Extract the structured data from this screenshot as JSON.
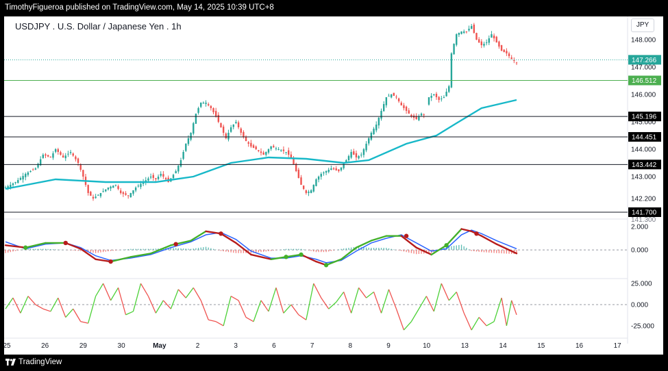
{
  "header": {
    "byline": "TimothyFigueroa published on TradingView.com, May 14, 2025 10:39 UTC+8"
  },
  "footer": {
    "logo_text": "TradingView"
  },
  "chart_title": "USDJPY . U.S. Dollar / Japanese Yen . 1h",
  "currency_badge": "JPY",
  "colors": {
    "up_candle": "#26a69a",
    "down_candle": "#ef5350",
    "ma_line": "#17b8c8",
    "osc_fast_up": "#43b02a",
    "osc_fast_down": "#b71c1c",
    "osc_slow": "#2962ff",
    "rsi_up": "#4cd137",
    "rsi_down": "#ef5350",
    "price_tag_bg": "#000000",
    "current_price_bg": "#26a69a",
    "green_level_bg": "#4caf50"
  },
  "chart_data": {
    "type": "candlestick",
    "x_labels": [
      "25",
      "26",
      "29",
      "30",
      "May",
      "2",
      "3",
      "6",
      "7",
      "8",
      "9",
      "10",
      "13",
      "14",
      "15",
      "16",
      "17"
    ],
    "panels": [
      {
        "name": "price",
        "y_ticks": [
          142.2,
          143.0,
          144.0,
          145.0,
          146.0,
          147.0,
          148.0
        ],
        "y_tick_labels": [
          "142.200",
          "143.000",
          "144.000",
          "145.000",
          "146.000",
          "147.000",
          "148.000"
        ],
        "ylim": [
          141.6,
          148.85
        ],
        "partial_bottom_label": "141.300",
        "levels": [
          {
            "value": 147.266,
            "label": "147.266",
            "style": "dotted",
            "kind": "current"
          },
          {
            "value": 146.512,
            "label": "146.512",
            "style": "solid-green",
            "kind": "green"
          },
          {
            "value": 145.196,
            "label": "145.196",
            "style": "solid-black",
            "kind": "black"
          },
          {
            "value": 144.451,
            "label": "144.451",
            "style": "solid-black",
            "kind": "black"
          },
          {
            "value": 143.442,
            "label": "143.442",
            "style": "solid-black",
            "kind": "black"
          },
          {
            "value": 141.7,
            "label": "141.700",
            "style": "solid-black",
            "kind": "black"
          }
        ],
        "close_path": [
          [
            0,
            142.6
          ],
          [
            4,
            142.8
          ],
          [
            8,
            143.1
          ],
          [
            12,
            143.3
          ],
          [
            15,
            143.8
          ],
          [
            18,
            143.7
          ],
          [
            20,
            144.0
          ],
          [
            23,
            143.7
          ],
          [
            26,
            143.9
          ],
          [
            29,
            143.5
          ],
          [
            31,
            143.0
          ],
          [
            33,
            142.4
          ],
          [
            35,
            142.2
          ],
          [
            38,
            142.4
          ],
          [
            41,
            142.6
          ],
          [
            44,
            142.7
          ],
          [
            46,
            142.4
          ],
          [
            49,
            142.3
          ],
          [
            52,
            142.6
          ],
          [
            55,
            142.8
          ],
          [
            58,
            143.0
          ],
          [
            60,
            142.9
          ],
          [
            62,
            143.1
          ],
          [
            65,
            142.8
          ],
          [
            68,
            143.2
          ],
          [
            70,
            143.6
          ],
          [
            72,
            144.2
          ],
          [
            74,
            144.6
          ],
          [
            76,
            145.3
          ],
          [
            78,
            145.7
          ],
          [
            80,
            145.7
          ],
          [
            82,
            145.5
          ],
          [
            84,
            145.2
          ],
          [
            86,
            144.8
          ],
          [
            88,
            144.4
          ],
          [
            90,
            144.8
          ],
          [
            92,
            145.0
          ],
          [
            94,
            144.6
          ],
          [
            96,
            144.3
          ],
          [
            98,
            144.1
          ],
          [
            100,
            144.0
          ],
          [
            103,
            143.8
          ],
          [
            106,
            144.1
          ],
          [
            109,
            144.0
          ],
          [
            112,
            143.9
          ],
          [
            114,
            143.7
          ],
          [
            116,
            143.2
          ],
          [
            118,
            142.7
          ],
          [
            120,
            142.4
          ],
          [
            122,
            142.5
          ],
          [
            124,
            142.9
          ],
          [
            126,
            143.1
          ],
          [
            128,
            143.2
          ],
          [
            130,
            143.3
          ],
          [
            133,
            143.2
          ],
          [
            136,
            143.6
          ],
          [
            138,
            143.9
          ],
          [
            140,
            143.7
          ],
          [
            142,
            143.8
          ],
          [
            144,
            144.2
          ],
          [
            146,
            144.6
          ],
          [
            148,
            144.9
          ],
          [
            150,
            145.4
          ],
          [
            152,
            145.9
          ],
          [
            154,
            146.0
          ],
          [
            156,
            145.9
          ],
          [
            158,
            145.6
          ],
          [
            160,
            145.4
          ],
          [
            162,
            145.2
          ],
          [
            164,
            145.1
          ],
          [
            166,
            145.3
          ],
          [
            167,
            145.25
          ],
          [
            169,
            145.9
          ],
          [
            171,
            146.0
          ],
          [
            173,
            145.8
          ],
          [
            175,
            145.9
          ],
          [
            177,
            146.3
          ],
          [
            178,
            147.5
          ],
          [
            180,
            148.2
          ],
          [
            182,
            148.3
          ],
          [
            184,
            148.3
          ],
          [
            186,
            148.5
          ],
          [
            188,
            148.0
          ],
          [
            190,
            147.8
          ],
          [
            192,
            147.9
          ],
          [
            194,
            148.2
          ],
          [
            196,
            147.9
          ],
          [
            198,
            147.6
          ],
          [
            200,
            147.5
          ],
          [
            202,
            147.3
          ],
          [
            204,
            147.15
          ]
        ],
        "moving_average": [
          [
            0,
            142.55
          ],
          [
            20,
            142.9
          ],
          [
            40,
            142.8
          ],
          [
            60,
            142.8
          ],
          [
            75,
            143.0
          ],
          [
            90,
            143.5
          ],
          [
            105,
            143.7
          ],
          [
            120,
            143.65
          ],
          [
            135,
            143.5
          ],
          [
            145,
            143.6
          ],
          [
            160,
            144.2
          ],
          [
            172,
            144.5
          ],
          [
            180,
            144.95
          ],
          [
            190,
            145.5
          ],
          [
            204,
            145.8
          ]
        ],
        "gap_after_index": 167
      },
      {
        "name": "oscillator",
        "y_ticks": [
          2.0,
          0.0
        ],
        "y_tick_labels": [
          "2.000",
          "0.000"
        ],
        "ylim": [
          -2.4,
          2.3
        ],
        "fast": [
          [
            0,
            0.4
          ],
          [
            8,
            0.2
          ],
          [
            16,
            0.6
          ],
          [
            24,
            0.6
          ],
          [
            30,
            0.1
          ],
          [
            36,
            -0.8
          ],
          [
            42,
            -1.0
          ],
          [
            50,
            -0.6
          ],
          [
            58,
            -0.3
          ],
          [
            66,
            0.4
          ],
          [
            74,
            0.8
          ],
          [
            80,
            1.6
          ],
          [
            86,
            1.4
          ],
          [
            92,
            0.6
          ],
          [
            98,
            -0.4
          ],
          [
            106,
            -0.8
          ],
          [
            112,
            -0.6
          ],
          [
            118,
            -0.4
          ],
          [
            124,
            -1.0
          ],
          [
            128,
            -1.3
          ],
          [
            134,
            -0.8
          ],
          [
            140,
            0.2
          ],
          [
            146,
            0.8
          ],
          [
            152,
            1.2
          ],
          [
            158,
            1.2
          ],
          [
            164,
            0.2
          ],
          [
            170,
            -0.4
          ],
          [
            176,
            0.4
          ],
          [
            182,
            1.8
          ],
          [
            186,
            1.6
          ],
          [
            190,
            1.2
          ],
          [
            196,
            0.5
          ],
          [
            204,
            -0.3
          ]
        ],
        "slow": [
          [
            0,
            0.7
          ],
          [
            8,
            0.1
          ],
          [
            16,
            0.5
          ],
          [
            24,
            0.6
          ],
          [
            30,
            0.2
          ],
          [
            36,
            -0.5
          ],
          [
            42,
            -0.9
          ],
          [
            50,
            -0.7
          ],
          [
            58,
            -0.4
          ],
          [
            66,
            0.2
          ],
          [
            74,
            0.7
          ],
          [
            80,
            1.3
          ],
          [
            86,
            1.5
          ],
          [
            92,
            0.9
          ],
          [
            98,
            -0.1
          ],
          [
            106,
            -0.7
          ],
          [
            112,
            -0.7
          ],
          [
            118,
            -0.5
          ],
          [
            124,
            -0.8
          ],
          [
            128,
            -1.1
          ],
          [
            134,
            -0.9
          ],
          [
            140,
            -0.1
          ],
          [
            146,
            0.6
          ],
          [
            152,
            1.0
          ],
          [
            158,
            1.3
          ],
          [
            164,
            0.6
          ],
          [
            170,
            -0.1
          ],
          [
            176,
            0.1
          ],
          [
            182,
            1.3
          ],
          [
            186,
            1.7
          ],
          [
            190,
            1.4
          ],
          [
            196,
            0.8
          ],
          [
            204,
            0.1
          ]
        ],
        "dots": [
          {
            "x": 8,
            "v": 0.2,
            "dir": "up"
          },
          {
            "x": 24,
            "v": 0.6,
            "dir": "down"
          },
          {
            "x": 42,
            "v": -1.0,
            "dir": "down"
          },
          {
            "x": 68,
            "v": 0.5,
            "dir": "down"
          },
          {
            "x": 86,
            "v": 1.4,
            "dir": "down"
          },
          {
            "x": 112,
            "v": -0.6,
            "dir": "up"
          },
          {
            "x": 118,
            "v": -0.4,
            "dir": "up"
          },
          {
            "x": 128,
            "v": -1.3,
            "dir": "up"
          },
          {
            "x": 160,
            "v": 1.2,
            "dir": "down"
          },
          {
            "x": 176,
            "v": 0.4,
            "dir": "up"
          },
          {
            "x": 188,
            "v": 1.4,
            "dir": "down"
          }
        ]
      },
      {
        "name": "momentum",
        "y_ticks": [
          25.0,
          0.0,
          -25.0
        ],
        "y_tick_labels": [
          "25.000",
          "0.000",
          "-25.000"
        ],
        "ylim": [
          -38,
          30
        ],
        "series": [
          [
            0,
            -5
          ],
          [
            3,
            8
          ],
          [
            6,
            -10
          ],
          [
            9,
            10
          ],
          [
            12,
            0
          ],
          [
            15,
            -5
          ],
          [
            18,
            -8
          ],
          [
            21,
            8
          ],
          [
            24,
            -15
          ],
          [
            27,
            -5
          ],
          [
            30,
            -20
          ],
          [
            33,
            -22
          ],
          [
            36,
            10
          ],
          [
            39,
            25
          ],
          [
            42,
            5
          ],
          [
            45,
            20
          ],
          [
            48,
            -12
          ],
          [
            51,
            -8
          ],
          [
            54,
            25
          ],
          [
            57,
            10
          ],
          [
            60,
            -10
          ],
          [
            63,
            5
          ],
          [
            66,
            -5
          ],
          [
            69,
            18
          ],
          [
            72,
            8
          ],
          [
            75,
            20
          ],
          [
            78,
            5
          ],
          [
            81,
            -18
          ],
          [
            84,
            -20
          ],
          [
            87,
            -25
          ],
          [
            90,
            10
          ],
          [
            93,
            5
          ],
          [
            96,
            -15
          ],
          [
            99,
            -20
          ],
          [
            102,
            5
          ],
          [
            105,
            -8
          ],
          [
            108,
            20
          ],
          [
            111,
            -10
          ],
          [
            114,
            0
          ],
          [
            117,
            -12
          ],
          [
            120,
            -18
          ],
          [
            123,
            25
          ],
          [
            126,
            8
          ],
          [
            129,
            -5
          ],
          [
            132,
            3
          ],
          [
            135,
            15
          ],
          [
            138,
            -10
          ],
          [
            141,
            20
          ],
          [
            144,
            8
          ],
          [
            147,
            15
          ],
          [
            150,
            -10
          ],
          [
            153,
            18
          ],
          [
            156,
            -5
          ],
          [
            159,
            -30
          ],
          [
            162,
            -20
          ],
          [
            165,
            -5
          ],
          [
            168,
            10
          ],
          [
            171,
            -8
          ],
          [
            174,
            25
          ],
          [
            177,
            5
          ],
          [
            180,
            15
          ],
          [
            183,
            -10
          ],
          [
            186,
            -30
          ],
          [
            189,
            -15
          ],
          [
            192,
            -25
          ],
          [
            195,
            -20
          ],
          [
            198,
            8
          ],
          [
            200,
            -25
          ],
          [
            202,
            5
          ],
          [
            204,
            -12
          ]
        ]
      }
    ]
  }
}
